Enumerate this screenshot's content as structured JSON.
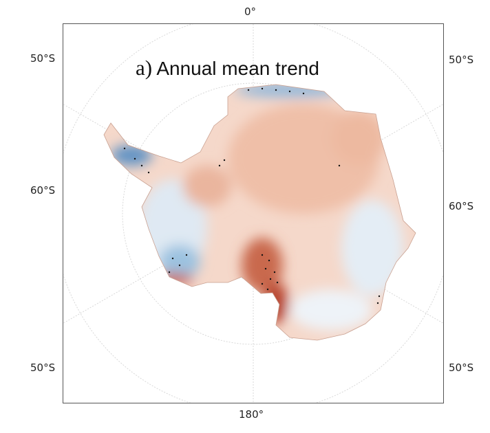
{
  "panel": {
    "letter": "a)",
    "title": "Annual mean trend"
  },
  "labels": {
    "top": "0°",
    "bottom": "180°",
    "left_upper": "50°S",
    "right_upper": "50°S",
    "left_middle": "60°S",
    "right_middle": "60°S",
    "left_lower": "50°S",
    "right_lower": "50°S"
  },
  "colors": {
    "warm": "#e9a58c",
    "strong_warm": "#b8442e",
    "cool": "#9cc2e0",
    "strong_cool": "#2f6aa6"
  }
}
